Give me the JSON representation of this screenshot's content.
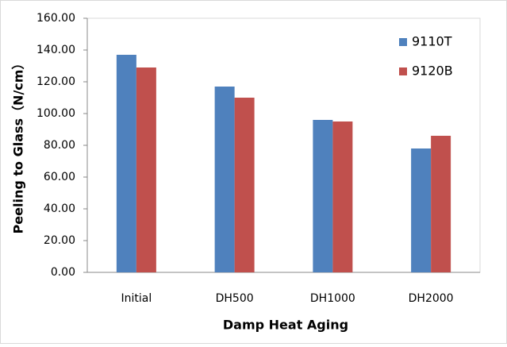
{
  "chart_data": {
    "type": "bar",
    "x_label": "Damp Heat Aging",
    "y_label": "Peeling to Glass（N/cm）",
    "categories": [
      "Initial",
      "DH500",
      "DH1000",
      "DH2000"
    ],
    "series": [
      {
        "name": "9110T",
        "color": "#4f81bd",
        "values": [
          137,
          117,
          96,
          78
        ]
      },
      {
        "name": "9120B",
        "color": "#c0504d",
        "values": [
          129,
          110,
          95,
          86
        ]
      }
    ],
    "ylim": [
      0,
      160
    ],
    "yticks": [
      {
        "value": 0,
        "label": "0.00"
      },
      {
        "value": 20,
        "label": "20.00"
      },
      {
        "value": 40,
        "label": "40.00"
      },
      {
        "value": 60,
        "label": "60.00"
      },
      {
        "value": 80,
        "label": "80.00"
      },
      {
        "value": 100,
        "label": "100.00"
      },
      {
        "value": 120,
        "label": "120.00"
      },
      {
        "value": 140,
        "label": "140.00"
      },
      {
        "value": 160,
        "label": "160.00"
      }
    ],
    "grid": false,
    "legend": "top-right"
  }
}
